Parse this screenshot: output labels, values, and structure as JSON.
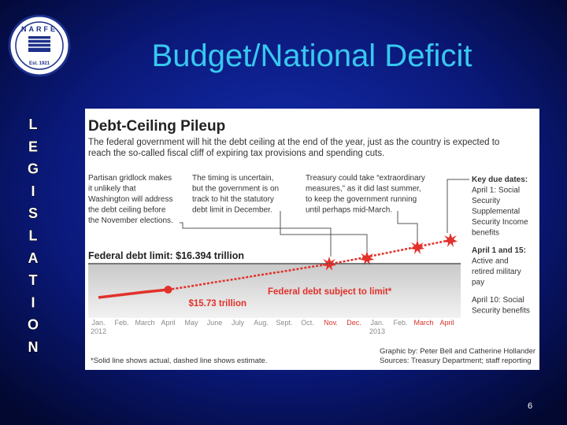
{
  "slide": {
    "title": "Budget/National Deficit",
    "side_text": [
      "L",
      "E",
      "G",
      "I",
      "S",
      "L",
      "A",
      "T",
      "I",
      "O",
      "N"
    ],
    "page_number": "6",
    "logo": {
      "name": "NARFE",
      "established": "Est. 1921"
    }
  },
  "chart_data": {
    "type": "line",
    "title": "Debt-Ceiling Pileup",
    "subtitle": [
      "The federal government will hit the debt ceiling at the end of the year, just as the country is expected to",
      "reach the so-called fiscal cliff of expiring tax provisions and spending cuts."
    ],
    "annotations": [
      [
        "Partisan gridlock makes",
        "it unlikely that",
        "Washington will address",
        "the debt ceiling before",
        "the November elections."
      ],
      [
        "The timing is uncertain,",
        "but the government is on",
        "track to hit the statutory",
        "debt limit in December."
      ],
      [
        "Treasury could take “extraordinary",
        "measures,” as it did last summer,",
        "to keep the government running",
        "until perhaps mid-March."
      ]
    ],
    "key_dates": [
      "Key due dates:",
      "April 1: Social",
      "Security",
      "Supplemental",
      "Security Income",
      "benefits",
      "April 1 and 15:",
      "Active and",
      "retired military",
      "pay",
      "April 10: Social",
      "Security benefits"
    ],
    "categories": [
      "Jan.",
      "Feb.",
      "March",
      "April",
      "May",
      "June",
      "July",
      "Aug.",
      "Sept.",
      "Oct.",
      "Nov.",
      "Dec.",
      "Jan.",
      "Feb.",
      "March",
      "April"
    ],
    "category_years": [
      "2012",
      null,
      null,
      null,
      null,
      null,
      null,
      null,
      null,
      null,
      null,
      null,
      "2013",
      null,
      null,
      null
    ],
    "category_colors": [
      "#8a8a8a",
      "#8a8a8a",
      "#8a8a8a",
      "#8a8a8a",
      "#8a8a8a",
      "#8a8a8a",
      "#8a8a8a",
      "#8a8a8a",
      "#8a8a8a",
      "#8a8a8a",
      "#d9342b",
      "#d9342b",
      "#8a8a8a",
      "#8a8a8a",
      "#d9342b",
      "#d9342b"
    ],
    "series": [
      {
        "name": "Federal debt subject to limit*",
        "color": "#e2312b",
        "values": [
          15.53,
          15.6,
          15.67,
          15.73,
          15.82,
          15.92,
          16.01,
          16.11,
          16.2,
          16.3,
          16.39,
          16.5,
          16.62,
          16.74,
          16.86,
          16.98
        ],
        "value_labels": [
          null,
          null,
          null,
          "$15.73 trillion",
          null,
          null,
          null,
          null,
          null,
          null,
          null,
          null,
          null,
          null,
          null,
          null
        ],
        "dashed_from": 3
      }
    ],
    "reference_line": {
      "value": 16.394,
      "label": "Federal debt limit: $16.394 trillion"
    },
    "ylim": [
      15,
      17.2
    ],
    "footnote": "*Solid line shows actual, dashed line shows estimate.",
    "credits": [
      "Graphic by: Peter Bell and Catherine Hollander",
      "Sources: Treasury Department; staff reporting"
    ]
  }
}
